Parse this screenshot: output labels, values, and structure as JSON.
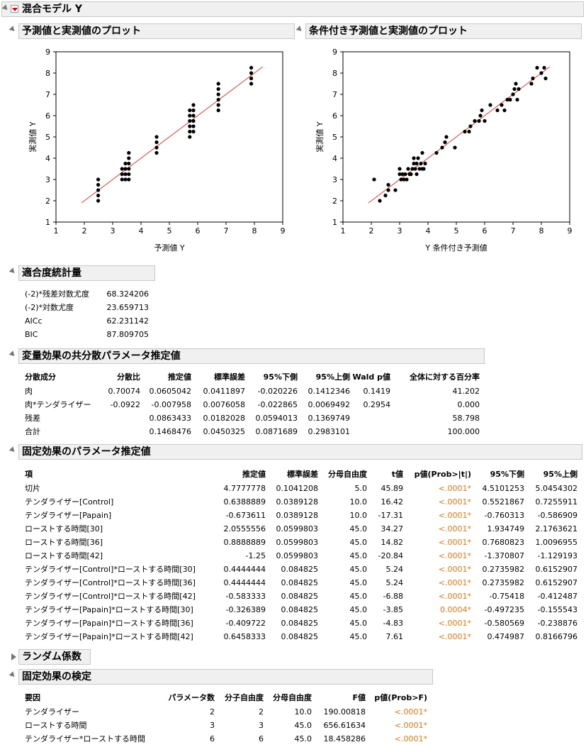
{
  "report_title": "混合モデル Y",
  "plot1": {
    "title": "予測値と実測値のプロット",
    "xlabel": "予測値 Y",
    "ylabel": "実測値 Y",
    "ticks": [
      "1",
      "2",
      "3",
      "4",
      "5",
      "6",
      "7",
      "8",
      "9"
    ]
  },
  "plot2": {
    "title": "条件付き予測値と実測値のプロット",
    "xlabel": "Y 条件付き予測値",
    "ylabel": "実測値 Y",
    "ticks": [
      "1",
      "2",
      "3",
      "4",
      "5",
      "6",
      "7",
      "8",
      "9"
    ]
  },
  "chart_data": [
    {
      "type": "scatter",
      "xlim": [
        1,
        9
      ],
      "ylim": [
        1,
        9
      ],
      "reference_line": [
        [
          1.9,
          1.9
        ],
        [
          8.3,
          8.3
        ]
      ],
      "points": [
        [
          2.49,
          2.0
        ],
        [
          2.49,
          2.25
        ],
        [
          2.49,
          2.5
        ],
        [
          2.49,
          2.75
        ],
        [
          2.49,
          3.0
        ],
        [
          3.33,
          3.0
        ],
        [
          3.33,
          3.25
        ],
        [
          3.33,
          3.5
        ],
        [
          3.45,
          3.0
        ],
        [
          3.45,
          3.25
        ],
        [
          3.45,
          3.5
        ],
        [
          3.45,
          3.75
        ],
        [
          3.57,
          3.0
        ],
        [
          3.57,
          3.25
        ],
        [
          3.57,
          3.5
        ],
        [
          3.57,
          3.75
        ],
        [
          3.57,
          4.0
        ],
        [
          3.57,
          4.25
        ],
        [
          4.55,
          4.25
        ],
        [
          4.55,
          4.5
        ],
        [
          4.55,
          4.75
        ],
        [
          4.55,
          5.0
        ],
        [
          5.72,
          5.0
        ],
        [
          5.72,
          5.25
        ],
        [
          5.72,
          5.5
        ],
        [
          5.72,
          5.75
        ],
        [
          5.72,
          6.0
        ],
        [
          5.72,
          6.25
        ],
        [
          5.85,
          5.25
        ],
        [
          5.85,
          5.5
        ],
        [
          5.85,
          5.75
        ],
        [
          5.85,
          6.0
        ],
        [
          5.85,
          6.25
        ],
        [
          5.85,
          6.5
        ],
        [
          6.73,
          6.25
        ],
        [
          6.73,
          6.5
        ],
        [
          6.73,
          6.75
        ],
        [
          6.73,
          7.0
        ],
        [
          6.73,
          7.25
        ],
        [
          6.73,
          7.5
        ],
        [
          7.89,
          7.5
        ],
        [
          7.89,
          7.75
        ],
        [
          7.89,
          8.0
        ],
        [
          7.89,
          8.25
        ]
      ]
    },
    {
      "type": "scatter",
      "xlim": [
        1,
        9
      ],
      "ylim": [
        1,
        9
      ],
      "reference_line": [
        [
          1.9,
          1.9
        ],
        [
          8.3,
          8.3
        ]
      ],
      "points": [
        [
          2.1,
          3.0
        ],
        [
          2.3,
          2.0
        ],
        [
          2.5,
          2.25
        ],
        [
          2.6,
          2.5
        ],
        [
          2.6,
          2.75
        ],
        [
          2.85,
          2.5
        ],
        [
          3.0,
          3.25
        ],
        [
          3.0,
          3.5
        ],
        [
          3.05,
          3.0
        ],
        [
          3.1,
          3.25
        ],
        [
          3.15,
          3.0
        ],
        [
          3.2,
          3.25
        ],
        [
          3.25,
          3.0
        ],
        [
          3.3,
          3.5
        ],
        [
          3.35,
          3.25
        ],
        [
          3.4,
          3.25
        ],
        [
          3.45,
          3.5
        ],
        [
          3.5,
          3.75
        ],
        [
          3.5,
          4.0
        ],
        [
          3.55,
          3.5
        ],
        [
          3.6,
          3.25
        ],
        [
          3.6,
          3.75
        ],
        [
          3.65,
          4.0
        ],
        [
          3.7,
          3.5
        ],
        [
          3.75,
          3.75
        ],
        [
          3.8,
          3.5
        ],
        [
          3.8,
          4.25
        ],
        [
          3.85,
          3.5
        ],
        [
          3.9,
          3.75
        ],
        [
          4.3,
          4.25
        ],
        [
          4.5,
          4.5
        ],
        [
          4.6,
          4.75
        ],
        [
          4.65,
          5.0
        ],
        [
          4.95,
          4.5
        ],
        [
          5.3,
          5.25
        ],
        [
          5.45,
          5.25
        ],
        [
          5.5,
          5.5
        ],
        [
          5.65,
          5.75
        ],
        [
          5.8,
          5.75
        ],
        [
          5.85,
          6.0
        ],
        [
          5.9,
          6.25
        ],
        [
          6.0,
          5.75
        ],
        [
          6.2,
          6.5
        ],
        [
          6.45,
          6.25
        ],
        [
          6.6,
          6.5
        ],
        [
          6.7,
          6.25
        ],
        [
          6.8,
          6.75
        ],
        [
          6.9,
          6.75
        ],
        [
          7.0,
          7.0
        ],
        [
          7.05,
          7.25
        ],
        [
          7.1,
          7.5
        ],
        [
          7.15,
          6.75
        ],
        [
          7.2,
          7.25
        ],
        [
          7.65,
          7.5
        ],
        [
          7.7,
          7.75
        ],
        [
          7.85,
          8.25
        ],
        [
          8.0,
          8.0
        ],
        [
          8.1,
          8.25
        ],
        [
          8.15,
          7.75
        ]
      ]
    }
  ],
  "fit": {
    "title": "適合度統計量",
    "rows": [
      {
        "label": "(-2)*残差対数尤度",
        "value": "68.324206"
      },
      {
        "label": "(-2)*対数尤度",
        "value": "23.659713"
      },
      {
        "label": "AICc",
        "value": "62.231142"
      },
      {
        "label": "BIC",
        "value": "87.809705"
      }
    ]
  },
  "cov": {
    "title": "変量効果の共分散パラメータ推定値",
    "headers": [
      "分散成分",
      "分散比",
      "推定値",
      "標準誤差",
      "95%下側",
      "95%上側",
      "Wald p値",
      "全体に対する百分率"
    ],
    "rows": [
      [
        "肉",
        "0.70074",
        "0.0605042",
        "0.0411897",
        "-0.020226",
        "0.1412346",
        "0.1419",
        "41.202"
      ],
      [
        "肉*テンダライザー",
        "-0.0922",
        "-0.007958",
        "0.0076058",
        "-0.022865",
        "0.0069492",
        "0.2954",
        "0.000"
      ],
      [
        "残差",
        "",
        "0.0863433",
        "0.0182028",
        "0.0594013",
        "0.1369749",
        "",
        "58.798"
      ],
      [
        "合計",
        "",
        "0.1468476",
        "0.0450325",
        "0.0871689",
        "0.2983101",
        "",
        "100.000"
      ]
    ]
  },
  "fixed": {
    "title": "固定効果のパラメータ推定値",
    "headers": [
      "項",
      "推定値",
      "標準誤差",
      "分母自由度",
      "t値",
      "p値(Prob>|t|)",
      "95%下側",
      "95%上側"
    ],
    "rows": [
      [
        "切片",
        "4.7777778",
        "0.1041208",
        "5.0",
        "45.89",
        "<.0001*",
        "4.5101253",
        "5.0454302"
      ],
      [
        "テンダライザー[Control]",
        "0.6388889",
        "0.0389128",
        "10.0",
        "16.42",
        "<.0001*",
        "0.5521867",
        "0.7255911"
      ],
      [
        "テンダライザー[Papain]",
        "-0.673611",
        "0.0389128",
        "10.0",
        "-17.31",
        "<.0001*",
        "-0.760313",
        "-0.586909"
      ],
      [
        "ローストする時間[30]",
        "2.0555556",
        "0.0599803",
        "45.0",
        "34.27",
        "<.0001*",
        "1.934749",
        "2.1763621"
      ],
      [
        "ローストする時間[36]",
        "0.8888889",
        "0.0599803",
        "45.0",
        "14.82",
        "<.0001*",
        "0.7680823",
        "1.0096955"
      ],
      [
        "ローストする時間[42]",
        "-1.25",
        "0.0599803",
        "45.0",
        "-20.84",
        "<.0001*",
        "-1.370807",
        "-1.129193"
      ],
      [
        "テンダライザー[Control]*ローストする時間[30]",
        "0.4444444",
        "0.084825",
        "45.0",
        "5.24",
        "<.0001*",
        "0.2735982",
        "0.6152907"
      ],
      [
        "テンダライザー[Control]*ローストする時間[36]",
        "0.4444444",
        "0.084825",
        "45.0",
        "5.24",
        "<.0001*",
        "0.2735982",
        "0.6152907"
      ],
      [
        "テンダライザー[Control]*ローストする時間[42]",
        "-0.583333",
        "0.084825",
        "45.0",
        "-6.88",
        "<.0001*",
        "-0.75418",
        "-0.412487"
      ],
      [
        "テンダライザー[Papain]*ローストする時間[30]",
        "-0.326389",
        "0.084825",
        "45.0",
        "-3.85",
        "0.0004*",
        "-0.497235",
        "-0.155543"
      ],
      [
        "テンダライザー[Papain]*ローストする時間[36]",
        "-0.409722",
        "0.084825",
        "45.0",
        "-4.83",
        "<.0001*",
        "-0.580569",
        "-0.238876"
      ],
      [
        "テンダライザー[Papain]*ローストする時間[42]",
        "0.6458333",
        "0.084825",
        "45.0",
        "7.61",
        "<.0001*",
        "0.474987",
        "0.8166796"
      ]
    ]
  },
  "random": {
    "title": "ランダム係数"
  },
  "tests": {
    "title": "固定効果の検定",
    "headers": [
      "要因",
      "パラメータ数",
      "分子自由度",
      "分母自由度",
      "F値",
      "p値(Prob>F)"
    ],
    "rows": [
      [
        "テンダライザー",
        "2",
        "2",
        "10.0",
        "190.00818",
        "<.0001*"
      ],
      [
        "ローストする時間",
        "3",
        "3",
        "45.0",
        "656.61634",
        "<.0001*"
      ],
      [
        "テンダライザー*ローストする時間",
        "6",
        "6",
        "45.0",
        "18.458286",
        "<.0001*"
      ]
    ]
  },
  "colors": {
    "accent": "#e07818",
    "refline": "#e03c3c",
    "header_bg": "#f0f0f0"
  }
}
